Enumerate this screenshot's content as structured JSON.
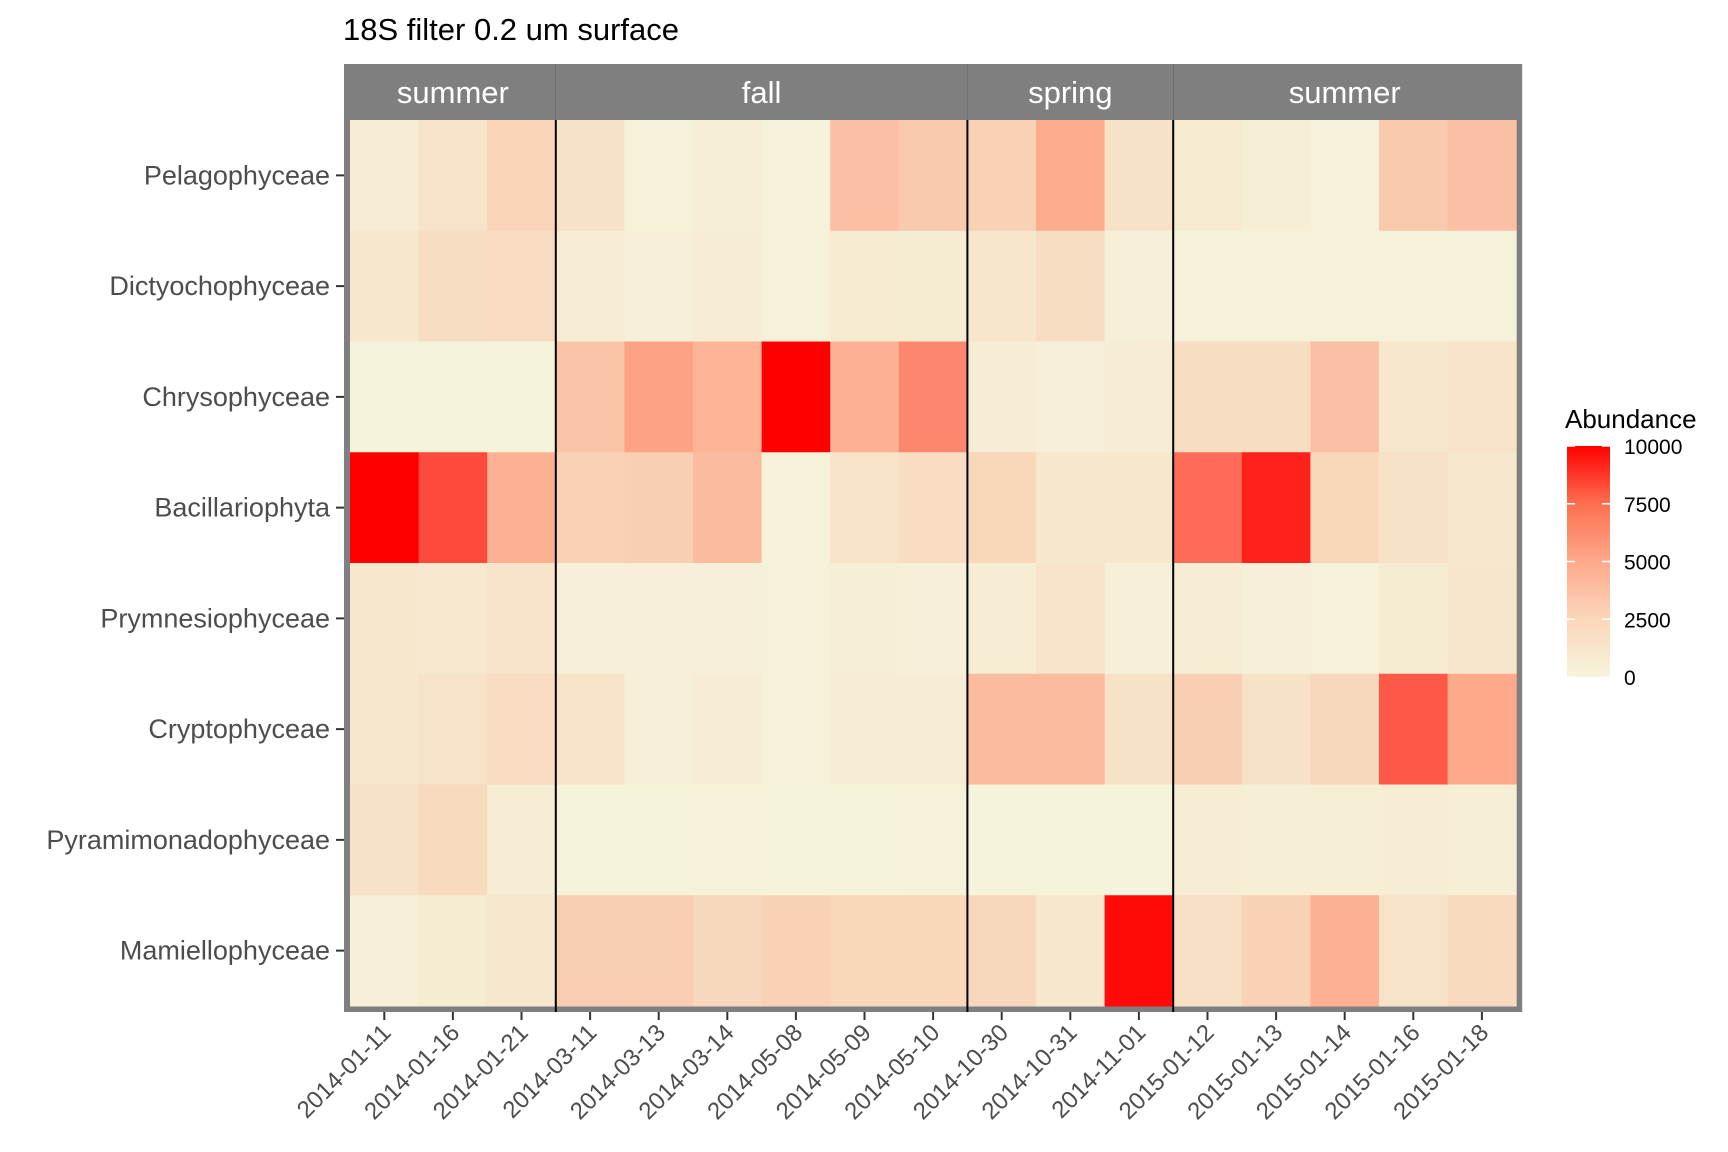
{
  "chart_data": {
    "type": "heatmap",
    "title": "18S filter 0.2 um surface",
    "xlabel": "",
    "ylabel": "",
    "legend": {
      "title": "Abundance",
      "ticks": [
        0,
        2500,
        5000,
        7500,
        10000
      ],
      "min": 0,
      "max": 10000,
      "low_color": "#f5f5dc",
      "high_color": "#ff0000",
      "position": "right"
    },
    "facets": [
      {
        "label": "summer",
        "dates": [
          "2014-01-11",
          "2014-01-16",
          "2014-01-21"
        ]
      },
      {
        "label": "fall",
        "dates": [
          "2014-03-11",
          "2014-03-13",
          "2014-03-14",
          "2014-05-08",
          "2014-05-09",
          "2014-05-10"
        ]
      },
      {
        "label": "spring",
        "dates": [
          "2014-10-30",
          "2014-10-31",
          "2014-11-01"
        ]
      },
      {
        "label": "summer",
        "dates": [
          "2015-01-12",
          "2015-01-13",
          "2015-01-14",
          "2015-01-16",
          "2015-01-18"
        ]
      }
    ],
    "rows": [
      "Pelagophyceae",
      "Dictyochophyceae",
      "Chrysophyceae",
      "Bacillariophyta",
      "Prymnesiophyceae",
      "Cryptophyceae",
      "Pyramimonadophyceae",
      "Mamiellophyceae"
    ],
    "values": [
      [
        500,
        1200,
        2200,
        1300,
        200,
        400,
        200,
        3500,
        2800,
        2300,
        4800,
        1300,
        700,
        400,
        200,
        2800,
        3500
      ],
      [
        900,
        1500,
        1700,
        500,
        300,
        500,
        200,
        700,
        600,
        1000,
        1500,
        300,
        200,
        200,
        200,
        200,
        200
      ],
      [
        100,
        100,
        100,
        3200,
        5200,
        4200,
        10000,
        4500,
        6000,
        500,
        300,
        500,
        1500,
        1500,
        3500,
        900,
        1200
      ],
      [
        10000,
        7800,
        4500,
        2400,
        2500,
        3800,
        200,
        1200,
        1600,
        2000,
        900,
        900,
        6800,
        9000,
        2000,
        1300,
        900
      ],
      [
        900,
        800,
        1100,
        300,
        300,
        300,
        200,
        400,
        300,
        500,
        1100,
        300,
        500,
        300,
        200,
        600,
        1000
      ],
      [
        900,
        1200,
        1600,
        1200,
        300,
        500,
        200,
        500,
        500,
        3800,
        3800,
        1300,
        2500,
        1300,
        1900,
        7400,
        5000
      ],
      [
        1300,
        1800,
        500,
        100,
        100,
        200,
        100,
        100,
        200,
        100,
        100,
        100,
        500,
        400,
        400,
        500,
        400
      ],
      [
        300,
        600,
        900,
        2600,
        2600,
        1900,
        2400,
        2000,
        2000,
        1900,
        900,
        9700,
        1400,
        2300,
        4500,
        1200,
        1800
      ]
    ]
  }
}
